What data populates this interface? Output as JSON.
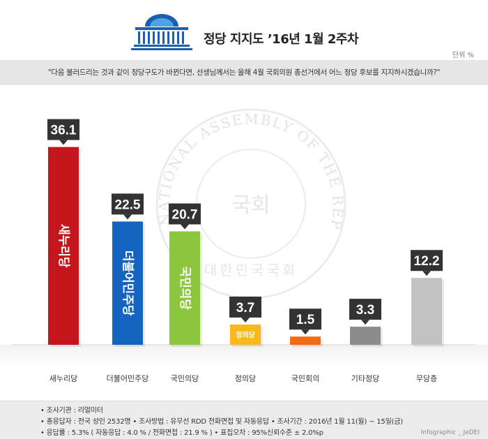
{
  "header": {
    "title": "정당 지지도 ’16년 1월 2주차",
    "unit": "단위 %"
  },
  "question": "\"다음 불러드리는 것과 같이 정당구도가 바뀐다면, 선생님께서는 올해 4월 국회의원 총선거에서 어느 정당 후보를 지지하시겠습니까?\"",
  "chart_data": {
    "type": "bar",
    "categories": [
      "새누리당",
      "더불어민주당",
      "국민의당",
      "정의당",
      "국민회의",
      "기타정당",
      "무당층"
    ],
    "values": [
      36.1,
      22.5,
      20.7,
      3.7,
      1.5,
      3.3,
      12.2
    ],
    "bar_labels": [
      "새누리당",
      "더불어민주당",
      "국민의당",
      "정의당",
      "",
      "",
      ""
    ],
    "colors": [
      "#c4161c",
      "#1565c0",
      "#8cc63f",
      "#f9b81b",
      "#f26b13",
      "#8c8c8c",
      "#c2c2c2"
    ],
    "ylim": [
      0,
      40
    ],
    "title": "",
    "xlabel": "",
    "ylabel": ""
  },
  "watermark": {
    "text": "NATIONAL ASSEMBLY OF THE REPUBLIC OF KOREA",
    "seal": "국회",
    "bottom": "대한민국국회"
  },
  "footer": {
    "line1": "• 조사기관 : 리얼미터",
    "line2": "• 총응답자 : 전국 성인 2532명  • 조사방법 : 유무선 RDD 전화면접 및 자동응답  • 조사기간 : 2016년 1월 11(월) ~ 15일(금)",
    "line3": "• 응답률 : 5.3% ( 자동응답 : 4.0 % / 전화면접 : 21.9 % )    • 표집오차 : 95%신뢰수준 ± 2.0%p",
    "credit": "Infographic _ JeDEI"
  }
}
